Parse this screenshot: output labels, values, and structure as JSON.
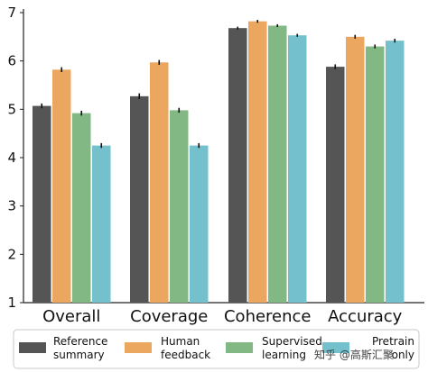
{
  "chart_data": {
    "type": "bar",
    "categories": [
      "Overall",
      "Coverage",
      "Coherence",
      "Accuracy"
    ],
    "series": [
      {
        "name": "Reference summary",
        "values": [
          5.07,
          5.27,
          6.68,
          5.88
        ],
        "errors": [
          0.05,
          0.06,
          0.03,
          0.05
        ],
        "color": "#555555"
      },
      {
        "name": "Human feedback",
        "values": [
          5.82,
          5.97,
          6.82,
          6.5
        ],
        "errors": [
          0.05,
          0.05,
          0.03,
          0.04
        ],
        "color": "#EBA760"
      },
      {
        "name": "Supervised learning",
        "values": [
          4.92,
          4.98,
          6.73,
          6.3
        ],
        "errors": [
          0.05,
          0.05,
          0.03,
          0.04
        ],
        "color": "#82B883"
      },
      {
        "name": "Pretrain only",
        "values": [
          4.25,
          4.25,
          6.53,
          6.42
        ],
        "errors": [
          0.05,
          0.05,
          0.03,
          0.04
        ],
        "color": "#74C0CD"
      }
    ],
    "ylim": [
      1,
      7
    ],
    "yticks": [
      1,
      2,
      3,
      4,
      5,
      6,
      7
    ],
    "title": "",
    "xlabel": "",
    "ylabel": "",
    "grid": false,
    "legend_position": "bottom"
  },
  "legend": {
    "items": [
      {
        "line1": "Reference",
        "line2": "summary"
      },
      {
        "line1": "Human",
        "line2": "feedback"
      },
      {
        "line1": "Supervised",
        "line2": "learning"
      },
      {
        "line1": "Pretrain",
        "line2": "only"
      }
    ]
  },
  "watermark": {
    "text": "知乎 @高斯汇聚"
  }
}
